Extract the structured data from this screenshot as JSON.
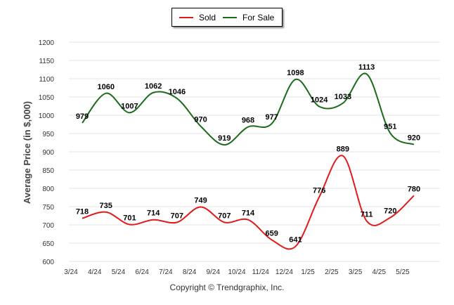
{
  "chart_data": {
    "type": "line",
    "categories": [
      "3/24",
      "4/24",
      "5/24",
      "6/24",
      "7/24",
      "8/24",
      "9/24",
      "10/24",
      "11/24",
      "12/24",
      "1/25",
      "2/25",
      "3/25",
      "4/25",
      "5/25"
    ],
    "series": [
      {
        "name": "Sold",
        "color": "#e31a1c",
        "values": [
          718,
          735,
          701,
          714,
          707,
          749,
          707,
          714,
          659,
          641,
          776,
          889,
          711,
          720,
          780
        ]
      },
      {
        "name": "For Sale",
        "color": "#1b6b1b",
        "values": [
          979,
          1060,
          1007,
          1062,
          1046,
          970,
          919,
          968,
          977,
          1098,
          1024,
          1033,
          1113,
          951,
          920
        ]
      }
    ],
    "ylabel": "Average Price (in $,000)",
    "xlabel": "",
    "ylim": [
      600,
      1200
    ],
    "yticks": [
      600,
      650,
      700,
      750,
      800,
      850,
      900,
      950,
      1000,
      1050,
      1100,
      1150,
      1200
    ],
    "grid": true,
    "legend": "top-center"
  },
  "legend": {
    "sold_label": "Sold",
    "for_sale_label": "For Sale"
  },
  "footer": {
    "copyright": "Copyright © Trendgraphix, Inc."
  }
}
